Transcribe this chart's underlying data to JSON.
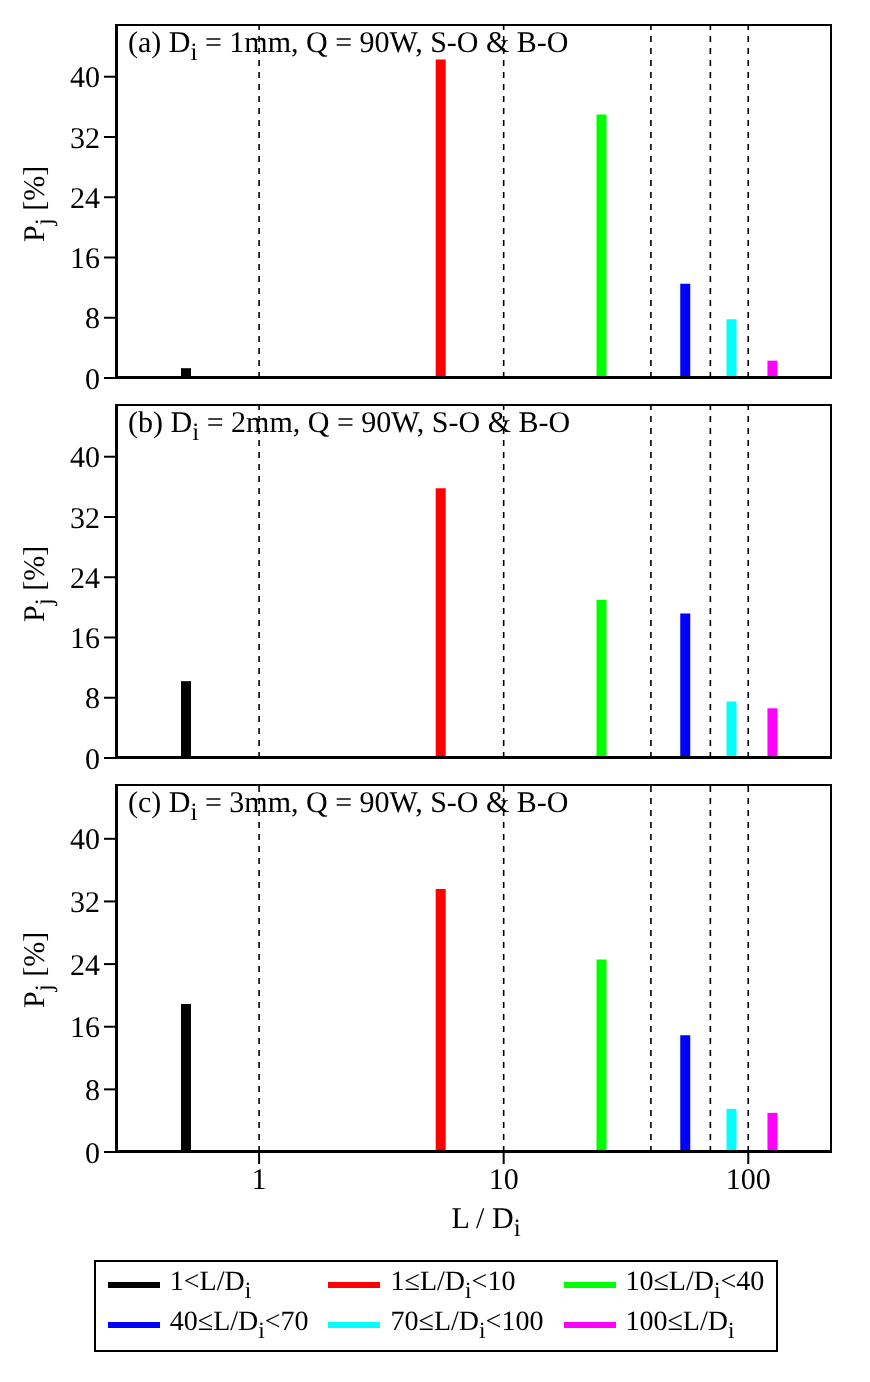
{
  "chart_data": [
    {
      "type": "bar",
      "title": "(a) D$_{i}$ = 1mm, Q = 90W, S-O & B-O",
      "ylabel": "P$_{j}$ [%]",
      "legend": "bottom",
      "log": "x",
      "xlim": [
        0.26,
        220
      ],
      "xticks": [
        1,
        10,
        100
      ],
      "ylim": [
        0,
        47
      ],
      "yticks": [
        0,
        8,
        16,
        24,
        32,
        40
      ],
      "tick_labels": "y",
      "ref_lines": [
        {
          "axis": "x",
          "value": 1,
          "color": "#000000",
          "line_style": "dashed"
        },
        {
          "axis": "x",
          "value": 10,
          "color": "#000000",
          "line_style": "dashed"
        },
        {
          "axis": "x",
          "value": 40,
          "color": "#000000",
          "line_style": "dashed"
        },
        {
          "axis": "x",
          "value": 70,
          "color": "#000000",
          "line_style": "dashed"
        },
        {
          "axis": "x",
          "value": 100,
          "color": "#000000",
          "line_style": "dashed"
        }
      ],
      "series": [
        {
          "name": "1<L/D$_{i}$",
          "color": "#000000",
          "x": [
            0.5
          ],
          "values": [
            1.3
          ]
        },
        {
          "name": "1≤L/D$_{i}$<10",
          "color": "#ff0000",
          "x": [
            5.5
          ],
          "values": [
            42.3
          ]
        },
        {
          "name": "10≤L/D$_{i}$<40",
          "color": "#00ff00",
          "x": [
            25
          ],
          "values": [
            35
          ]
        },
        {
          "name": "40≤L/D$_{i}$<70",
          "color": "#0000ff",
          "x": [
            55
          ],
          "values": [
            12.5
          ]
        },
        {
          "name": "70≤L/D$_{i}$<100",
          "color": "#00ffff",
          "x": [
            85
          ],
          "values": [
            7.8
          ]
        },
        {
          "name": "100≤L/D$_{i}$",
          "color": "#ff00ff",
          "x": [
            125
          ],
          "values": [
            2.3
          ]
        }
      ]
    },
    {
      "type": "bar",
      "title": "(b) D$_{i}$ = 2mm, Q = 90W, S-O & B-O",
      "ylabel": "P$_{j}$ [%]",
      "log": "x",
      "xlim": [
        0.26,
        220
      ],
      "xticks": [
        1,
        10,
        100
      ],
      "ylim": [
        0,
        47
      ],
      "yticks": [
        0,
        8,
        16,
        24,
        32,
        40
      ],
      "tick_labels": "y",
      "ref_lines": [
        {
          "axis": "x",
          "value": 1,
          "color": "#000000",
          "line_style": "dashed"
        },
        {
          "axis": "x",
          "value": 10,
          "color": "#000000",
          "line_style": "dashed"
        },
        {
          "axis": "x",
          "value": 40,
          "color": "#000000",
          "line_style": "dashed"
        },
        {
          "axis": "x",
          "value": 70,
          "color": "#000000",
          "line_style": "dashed"
        },
        {
          "axis": "x",
          "value": 100,
          "color": "#000000",
          "line_style": "dashed"
        }
      ],
      "series": [
        {
          "color": "#000000",
          "x": [
            0.5
          ],
          "values": [
            10.2
          ]
        },
        {
          "color": "#ff0000",
          "x": [
            5.5
          ],
          "values": [
            35.8
          ]
        },
        {
          "color": "#00ff00",
          "x": [
            25
          ],
          "values": [
            21
          ]
        },
        {
          "color": "#0000ff",
          "x": [
            55
          ],
          "values": [
            19.2
          ]
        },
        {
          "color": "#00ffff",
          "x": [
            85
          ],
          "values": [
            7.5
          ]
        },
        {
          "color": "#ff00ff",
          "x": [
            125
          ],
          "values": [
            6.6
          ]
        }
      ]
    },
    {
      "type": "bar",
      "title": "(c) D$_{i}$ = 3mm, Q = 90W, S-O & B-O",
      "ylabel": "P$_{j}$ [%]",
      "xlabel": "L / D$_{i}$",
      "log": "x",
      "xlim": [
        0.26,
        220
      ],
      "xticks": [
        1,
        10,
        100
      ],
      "ylim": [
        0,
        47
      ],
      "yticks": [
        0,
        8,
        16,
        24,
        32,
        40
      ],
      "ref_lines": [
        {
          "axis": "x",
          "value": 1,
          "color": "#000000",
          "line_style": "dashed"
        },
        {
          "axis": "x",
          "value": 10,
          "color": "#000000",
          "line_style": "dashed"
        },
        {
          "axis": "x",
          "value": 40,
          "color": "#000000",
          "line_style": "dashed"
        },
        {
          "axis": "x",
          "value": 70,
          "color": "#000000",
          "line_style": "dashed"
        },
        {
          "axis": "x",
          "value": 100,
          "color": "#000000",
          "line_style": "dashed"
        }
      ],
      "series": [
        {
          "color": "#000000",
          "x": [
            0.5
          ],
          "values": [
            18.9
          ]
        },
        {
          "color": "#ff0000",
          "x": [
            5.5
          ],
          "values": [
            33.6
          ]
        },
        {
          "color": "#00ff00",
          "x": [
            25
          ],
          "values": [
            24.6
          ]
        },
        {
          "color": "#0000ff",
          "x": [
            55
          ],
          "values": [
            14.9
          ]
        },
        {
          "color": "#00ffff",
          "x": [
            85
          ],
          "values": [
            5.5
          ]
        },
        {
          "color": "#ff00ff",
          "x": [
            125
          ],
          "values": [
            5
          ]
        }
      ]
    }
  ]
}
